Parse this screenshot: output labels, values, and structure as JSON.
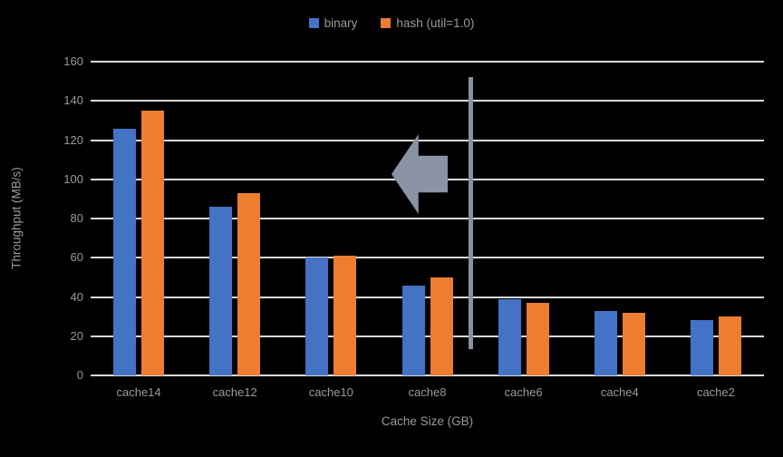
{
  "chart_data": {
    "type": "bar",
    "categories": [
      "cache14",
      "cache12",
      "cache10",
      "cache8",
      "cache6",
      "cache4",
      "cache2"
    ],
    "series": [
      {
        "name": "binary",
        "color": "#4472C4",
        "values": [
          126,
          86,
          60,
          46,
          39,
          33,
          28
        ]
      },
      {
        "name": "hash (util=1.0)",
        "color": "#ED7D31",
        "values": [
          135,
          93,
          61,
          50,
          37,
          32,
          30
        ]
      }
    ],
    "title": "",
    "xlabel": "Cache Size (GB)",
    "ylabel": "Throughput (MB/s)",
    "ylim": [
      0,
      160
    ],
    "yticks": [
      0,
      20,
      40,
      60,
      80,
      100,
      120,
      140,
      160
    ],
    "grid": "horizontal",
    "legend_position": "top-center",
    "colors": {
      "background": "#000000",
      "gridline": "#d9d9d9",
      "axis_line": "#d9d9d9",
      "tick_text": "#999999",
      "annotation_gray": "#8a93a3"
    },
    "annotations": [
      {
        "name": "left-block-arrow",
        "shape": "arrow-left",
        "color": "#8a93a3"
      },
      {
        "name": "vertical-divider-line",
        "shape": "vline",
        "color": "#8a92a0"
      }
    ]
  }
}
